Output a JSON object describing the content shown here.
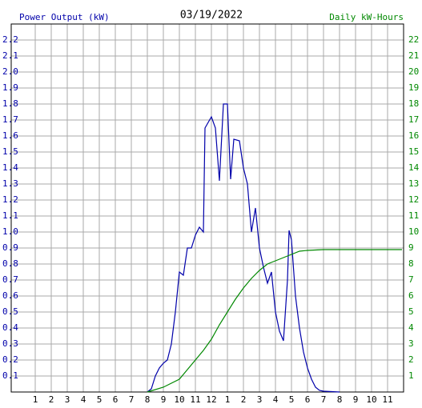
{
  "chart_data": {
    "type": "line",
    "title": "03/19/2022",
    "ylabel": "Power Output (kW)",
    "y2label": "Daily kW-Hours",
    "xlim": [
      -0.5,
      24
    ],
    "xticks": [
      1,
      2,
      3,
      4,
      5,
      6,
      7,
      8,
      9,
      10,
      11,
      12,
      {
        "value": 13,
        "label": "1"
      },
      {
        "value": 14,
        "label": "2"
      },
      {
        "value": 15,
        "label": "3"
      },
      {
        "value": 16,
        "label": "4"
      },
      {
        "value": 17,
        "label": "5"
      },
      {
        "value": 18,
        "label": "6"
      },
      {
        "value": 19,
        "label": "7"
      },
      {
        "value": 20,
        "label": "8"
      },
      {
        "value": 21,
        "label": "9"
      },
      {
        "value": 22,
        "label": "10"
      },
      {
        "value": 23,
        "label": "11"
      }
    ],
    "ylim": [
      0,
      2.3
    ],
    "yticks": [
      0.1,
      0.2,
      0.3,
      0.4,
      0.5,
      0.6,
      0.7,
      0.8,
      0.9,
      {
        "value": 1,
        "label": "1.0"
      },
      1.1,
      1.2,
      1.3,
      1.4,
      1.5,
      1.6,
      1.7,
      1.8,
      1.9,
      {
        "value": 2,
        "label": "2.0"
      },
      2.1,
      2.2
    ],
    "y2lim": [
      0,
      23
    ],
    "y2ticks": [
      1,
      2,
      3,
      4,
      5,
      6,
      7,
      8,
      9,
      10,
      11,
      12,
      13,
      14,
      15,
      16,
      17,
      18,
      19,
      20,
      21,
      22
    ],
    "grid": true,
    "ylabel_color": "#0000aa",
    "y2label_color": "#008800",
    "series": [
      {
        "color": "#0000aa",
        "axis": "y",
        "x": [
          8,
          8.25,
          8.5,
          8.75,
          9,
          9.25,
          9.5,
          9.75,
          10,
          10.25,
          10.5,
          10.75,
          11,
          11.25,
          11.5,
          11.6,
          12,
          12.25,
          12.5,
          12.75,
          13,
          13.2,
          13.4,
          13.75,
          14,
          14.25,
          14.5,
          14.75,
          15,
          15.25,
          15.5,
          15.75,
          16,
          16.25,
          16.5,
          16.75,
          16.85,
          17,
          17.25,
          17.5,
          17.75,
          18,
          18.25,
          18.5,
          18.75,
          19,
          20
        ],
        "values": [
          0,
          0.02,
          0.1,
          0.15,
          0.18,
          0.2,
          0.3,
          0.5,
          0.75,
          0.73,
          0.9,
          0.9,
          0.98,
          1.03,
          1,
          1.65,
          1.72,
          1.65,
          1.32,
          1.8,
          1.8,
          1.33,
          1.58,
          1.57,
          1.4,
          1.3,
          1,
          1.15,
          0.9,
          0.78,
          0.68,
          0.75,
          0.5,
          0.38,
          0.32,
          0.7,
          1.01,
          0.95,
          0.6,
          0.4,
          0.25,
          0.15,
          0.08,
          0.03,
          0.01,
          0.005,
          0
        ]
      },
      {
        "color": "#008800",
        "axis": "y2",
        "x": [
          8,
          9,
          10,
          10.5,
          11,
          11.5,
          12,
          12.5,
          13,
          13.5,
          14,
          14.5,
          15,
          15.5,
          16,
          16.5,
          17,
          17.5,
          18,
          19,
          20,
          23.9
        ],
        "values": [
          0,
          0.3,
          0.8,
          1.4,
          2,
          2.6,
          3.3,
          4.2,
          5,
          5.8,
          6.5,
          7.1,
          7.6,
          8,
          8.2,
          8.4,
          8.6,
          8.8,
          8.85,
          8.9,
          8.9,
          8.9
        ]
      }
    ]
  }
}
